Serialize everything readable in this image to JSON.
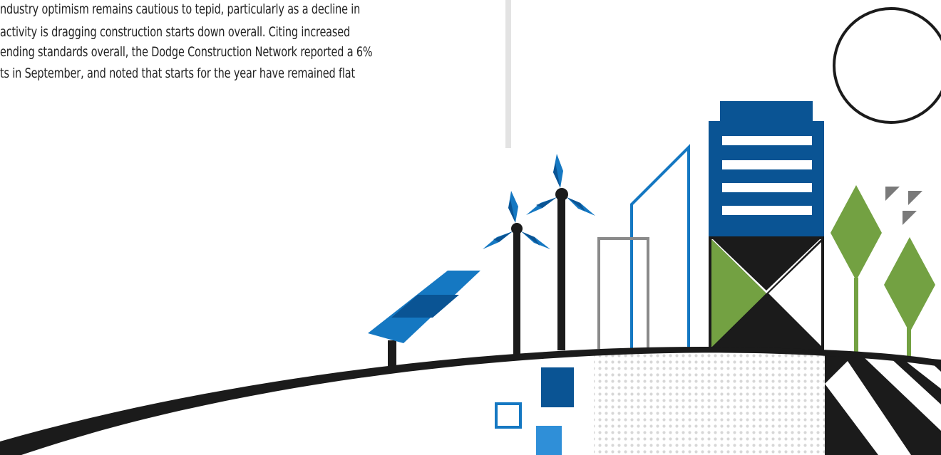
{
  "article": {
    "lines": [
      "ndustry optimism remains cautious to tepid, particularly as a decline in",
      "activity is dragging construction starts down overall. Citing increased",
      "ending standards overall, the Dodge Construction Network reported a 6%",
      "ts in September, and noted that starts for the year have remained flat"
    ]
  },
  "illustration": {
    "colors": {
      "blue_dark": "#0a5494",
      "blue_mid": "#1578c2",
      "blue_light": "#2f8fd8",
      "green": "#73a142",
      "black": "#1b1b1b",
      "gray": "#8a8a8a",
      "gray_light": "#d9d9d9",
      "divider": "#e3e3e3"
    }
  }
}
